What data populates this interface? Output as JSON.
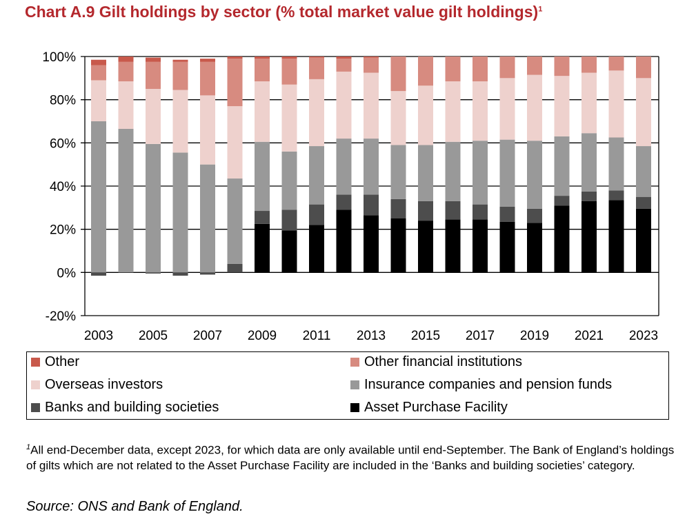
{
  "title": "Chart A.9 Gilt holdings by sector (% total market value gilt holdings)",
  "title_footnote_mark": "1",
  "footnote_mark": "1",
  "footnote": "All end-December data, except 2023, for which data are only available until end-September. The Bank of England’s holdings of gilts which are not related to the Asset Purchase Facility are included in the ‘Banks and building societies’ category.",
  "source": "Source: ONS and Bank of England.",
  "chart_data": {
    "type": "bar",
    "stacked": true,
    "title": "Chart A.9 Gilt holdings by sector (% total market value gilt holdings)",
    "xlabel": "",
    "ylabel": "",
    "ylim": [
      -20,
      100
    ],
    "yticks": [
      "-20%",
      "0%",
      "20%",
      "40%",
      "60%",
      "80%",
      "100%"
    ],
    "xtick_labels": [
      "2003",
      "2005",
      "2007",
      "2009",
      "2011",
      "2013",
      "2015",
      "2017",
      "2019",
      "2021",
      "2023"
    ],
    "grid": true,
    "legend_position": "bottom",
    "categories": [
      "2003",
      "2004",
      "2005",
      "2006",
      "2007",
      "2008",
      "2009",
      "2010",
      "2011",
      "2012",
      "2013",
      "2014",
      "2015",
      "2016",
      "2017",
      "2018",
      "2019",
      "2020",
      "2021",
      "2022",
      "2023"
    ],
    "series": [
      {
        "name": "Asset Purchase Facility",
        "color": "#000000",
        "values": [
          0,
          0,
          0,
          0,
          0,
          0,
          22.5,
          19.5,
          22,
          29,
          26.5,
          25,
          24,
          24.5,
          24.5,
          23.5,
          23,
          31,
          33,
          33.5,
          29.5
        ]
      },
      {
        "name": "Banks and building societies",
        "color": "#4d4d4d",
        "values": [
          -1.5,
          0,
          -0.5,
          -1.5,
          -1,
          4,
          6,
          9.5,
          9.5,
          7,
          9.5,
          9,
          9,
          8.5,
          7,
          7,
          6.5,
          4.5,
          4.5,
          4.5,
          5.5
        ]
      },
      {
        "name": "Insurance companies and pension funds",
        "color": "#999999",
        "values": [
          70,
          66.5,
          59.5,
          55.5,
          50,
          39.5,
          32,
          27,
          27,
          26,
          26,
          25,
          26,
          27.5,
          29.5,
          31,
          31.5,
          27.5,
          27,
          24.5,
          23.5
        ]
      },
      {
        "name": "Overseas investors",
        "color": "#eed1cd",
        "values": [
          19,
          22,
          25.5,
          29,
          32,
          33.5,
          28,
          31,
          31,
          31,
          30.5,
          25,
          27.5,
          28,
          27.5,
          28.5,
          30.5,
          28,
          28,
          31,
          31.5
        ]
      },
      {
        "name": "Other financial institutions",
        "color": "#d78b80",
        "values": [
          7,
          9,
          12.5,
          13,
          15.5,
          22,
          10.5,
          12,
          10,
          6,
          7,
          16,
          13.5,
          11.5,
          11.5,
          10,
          8.5,
          9,
          7.5,
          6.5,
          10
        ]
      },
      {
        "name": "Other",
        "color": "#c8594b",
        "values": [
          2.5,
          2.5,
          2,
          1,
          1.5,
          1,
          1,
          1,
          0.5,
          1,
          0.5,
          0,
          0,
          0,
          0,
          0,
          0,
          0,
          0,
          0,
          0
        ]
      }
    ],
    "legend_order": [
      "Other",
      "Other financial institutions",
      "Overseas investors",
      "Insurance companies and pension funds",
      "Banks and building societies",
      "Asset Purchase Facility"
    ]
  }
}
